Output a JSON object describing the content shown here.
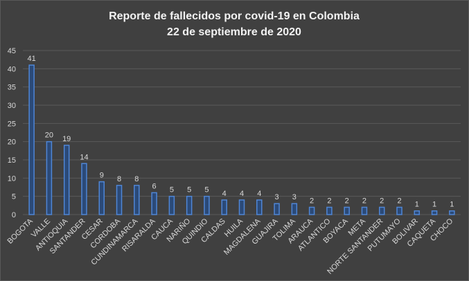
{
  "chart_data": {
    "type": "bar",
    "title": "Reporte de fallecidos por covid-19 en Colombia",
    "subtitle": "22 de septiembre de 2020",
    "categories": [
      "BOGOTA",
      "VALLE",
      "ANTIOQUIA",
      "SANTANDER",
      "CESAR",
      "CORDOBA",
      "CUNDINAMARCA",
      "RISARALDA",
      "CAUCA",
      "NARIÑO",
      "QUINDIO",
      "CALDAS",
      "HUILA",
      "MAGDALENA",
      "GUAJIRA",
      "TOLIMA",
      "ARAUCA",
      "ATLANTICO",
      "BOYACA",
      "META",
      "NORTE SANTANDER",
      "PUTUMAYO",
      "BOLIVAR",
      "CAQUETA",
      "CHOCO"
    ],
    "values": [
      41,
      20,
      19,
      14,
      9,
      8,
      8,
      6,
      5,
      5,
      5,
      4,
      4,
      4,
      3,
      3,
      2,
      2,
      2,
      2,
      2,
      2,
      1,
      1,
      1
    ],
    "color": "#4f86d6",
    "ylim": [
      0,
      45
    ],
    "yticks": [
      0,
      5,
      10,
      15,
      20,
      25,
      30,
      35,
      40,
      45
    ],
    "grid": true
  }
}
